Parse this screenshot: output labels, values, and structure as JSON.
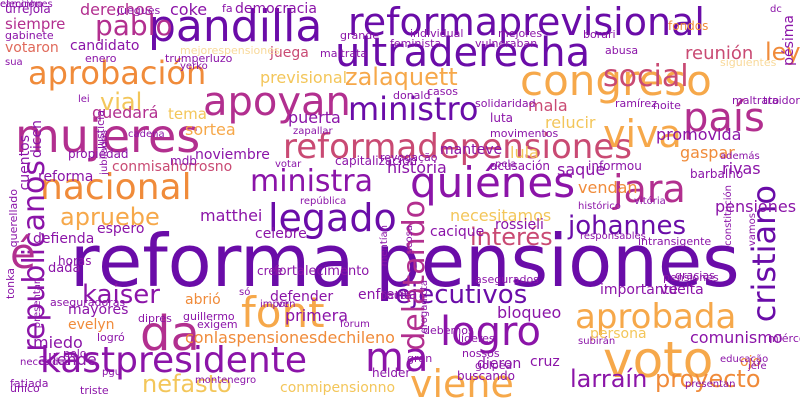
{
  "palette": {
    "deep_purple": "#6a0ca8",
    "purple": "#8b14a8",
    "magenta": "#b22f8f",
    "rose": "#c94a73",
    "coral": "#e0695a",
    "orange": "#f08b3a",
    "light_orange": "#f6a84a",
    "gold": "#f3c65a",
    "pale": "#f8d99a"
  },
  "cloud": {
    "words": [
      {
        "text": "reforma",
        "color": "deep_purple",
        "weight": "large"
      },
      {
        "text": "pensiones",
        "color": "deep_purple",
        "weight": "large"
      },
      {
        "text": "reformaprevisional",
        "color": "deep_purple",
        "weight": "large"
      },
      {
        "text": "ultraderecha",
        "color": "deep_purple",
        "weight": "large"
      },
      {
        "text": "pandilla",
        "color": "deep_purple",
        "weight": "large"
      },
      {
        "text": "congreso",
        "color": "light_orange",
        "weight": "large"
      },
      {
        "text": "aprobación",
        "color": "orange",
        "weight": "large"
      },
      {
        "text": "apoyan",
        "color": "magenta",
        "weight": "large"
      },
      {
        "text": "mujeres",
        "color": "magenta",
        "weight": "large"
      },
      {
        "text": "reformadepensiones",
        "color": "rose",
        "weight": "large"
      },
      {
        "text": "social",
        "color": "rose",
        "weight": "medium"
      },
      {
        "text": "país",
        "color": "magenta",
        "weight": "large"
      },
      {
        "text": "viva",
        "color": "light_orange",
        "weight": "large"
      },
      {
        "text": "ministro",
        "color": "deep_purple",
        "weight": "large"
      },
      {
        "text": "ministra",
        "color": "purple",
        "weight": "large"
      },
      {
        "text": "quiénes",
        "color": "purple",
        "weight": "large"
      },
      {
        "text": "jara",
        "color": "magenta",
        "weight": "large"
      },
      {
        "text": "nacional",
        "color": "orange",
        "weight": "large"
      },
      {
        "text": "legado",
        "color": "deep_purple",
        "weight": "large"
      },
      {
        "text": "republicanos",
        "color": "purple",
        "weight": "large"
      },
      {
        "text": "font",
        "color": "light_orange",
        "weight": "large"
      },
      {
        "text": "logro",
        "color": "purple",
        "weight": "large"
      },
      {
        "text": "cristiano",
        "color": "deep_purple",
        "weight": "large"
      },
      {
        "text": "voto",
        "color": "light_orange",
        "weight": "large"
      },
      {
        "text": "da",
        "color": "magenta",
        "weight": "large"
      },
      {
        "text": "aprobada",
        "color": "light_orange",
        "weight": "large"
      },
      {
        "text": "kastpresidente",
        "color": "purple",
        "weight": "large"
      },
      {
        "text": "ma",
        "color": "purple",
        "weight": "large"
      },
      {
        "text": "viene",
        "color": "light_orange",
        "weight": "large"
      },
      {
        "text": "larraín",
        "color": "purple",
        "weight": "medium"
      },
      {
        "text": "proyecto",
        "color": "orange",
        "weight": "medium"
      },
      {
        "text": "nefasto",
        "color": "gold",
        "weight": "medium"
      },
      {
        "text": "kaiser",
        "color": "purple",
        "weight": "medium"
      },
      {
        "text": "ejecutivos",
        "color": "deep_purple",
        "weight": "medium"
      },
      {
        "text": "delatando",
        "color": "magenta",
        "weight": "medium"
      },
      {
        "text": "interés",
        "color": "rose",
        "weight": "medium"
      },
      {
        "text": "johannes",
        "color": "deep_purple",
        "weight": "medium"
      },
      {
        "text": "apruebe",
        "color": "light_orange",
        "weight": "medium"
      },
      {
        "text": "pablo",
        "color": "magenta",
        "weight": "medium"
      },
      {
        "text": "zalaquett",
        "color": "light_orange",
        "weight": "medium"
      },
      {
        "text": "vial",
        "color": "gold",
        "weight": "medium"
      },
      {
        "text": "ley",
        "color": "orange",
        "weight": "medium"
      },
      {
        "text": "é",
        "color": "magenta",
        "weight": "large"
      },
      {
        "text": "derechos",
        "color": "magenta",
        "weight": "small"
      },
      {
        "text": "coke",
        "color": "purple",
        "weight": "small"
      },
      {
        "text": "siempre",
        "color": "magenta",
        "weight": "small"
      },
      {
        "text": "candidato",
        "color": "purple",
        "weight": "small"
      },
      {
        "text": "votaron",
        "color": "coral",
        "weight": "small"
      },
      {
        "text": "democracia",
        "color": "purple",
        "weight": "small"
      },
      {
        "text": "reunión",
        "color": "rose",
        "weight": "small"
      },
      {
        "text": "pésima",
        "color": "purple",
        "weight": "small"
      },
      {
        "text": "juega",
        "color": "rose",
        "weight": "small"
      },
      {
        "text": "previsional",
        "color": "gold",
        "weight": "small"
      },
      {
        "text": "puerta",
        "color": "purple",
        "weight": "small"
      },
      {
        "text": "quedará",
        "color": "magenta",
        "weight": "small"
      },
      {
        "text": "tema",
        "color": "gold",
        "weight": "small"
      },
      {
        "text": "sortea",
        "color": "light_orange",
        "weight": "small"
      },
      {
        "text": "mala",
        "color": "rose",
        "weight": "small"
      },
      {
        "text": "relucir",
        "color": "gold",
        "weight": "small"
      },
      {
        "text": "promovida",
        "color": "purple",
        "weight": "small"
      },
      {
        "text": "gaspar",
        "color": "orange",
        "weight": "small"
      },
      {
        "text": "historia",
        "color": "purple",
        "weight": "small"
      },
      {
        "text": "lula",
        "color": "gold",
        "weight": "small"
      },
      {
        "text": "saque",
        "color": "purple",
        "weight": "small"
      },
      {
        "text": "vendan",
        "color": "orange",
        "weight": "small"
      },
      {
        "text": "rivas",
        "color": "purple",
        "weight": "small"
      },
      {
        "text": "pensiones",
        "color": "purple",
        "weight": "small"
      },
      {
        "text": "noviembre",
        "color": "purple",
        "weight": "small"
      },
      {
        "text": "manteve",
        "color": "purple",
        "weight": "small"
      },
      {
        "text": "conmisahorrosno",
        "color": "rose",
        "weight": "small"
      },
      {
        "text": "matthei",
        "color": "purple",
        "weight": "small"
      },
      {
        "text": "defienda",
        "color": "purple",
        "weight": "small"
      },
      {
        "text": "espero",
        "color": "purple",
        "weight": "small"
      },
      {
        "text": "celebre",
        "color": "purple",
        "weight": "small"
      },
      {
        "text": "necesitamos",
        "color": "gold",
        "weight": "small"
      },
      {
        "text": "rossieli",
        "color": "purple",
        "weight": "small"
      },
      {
        "text": "cacique",
        "color": "purple",
        "weight": "small"
      },
      {
        "text": "horas",
        "color": "purple",
        "weight": "small"
      },
      {
        "text": "dada",
        "color": "purple",
        "weight": "small"
      },
      {
        "text": "fortalecimento",
        "color": "purple",
        "weight": "small"
      },
      {
        "text": "cree",
        "color": "purple",
        "weight": "small"
      },
      {
        "text": "defender",
        "color": "purple",
        "weight": "small"
      },
      {
        "text": "enfrenta",
        "color": "purple",
        "weight": "small"
      },
      {
        "text": "importante",
        "color": "purple",
        "weight": "small"
      },
      {
        "text": "vuelta",
        "color": "purple",
        "weight": "small"
      },
      {
        "text": "abrió",
        "color": "orange",
        "weight": "small"
      },
      {
        "text": "mayores",
        "color": "purple",
        "weight": "small"
      },
      {
        "text": "evelyn",
        "color": "orange",
        "weight": "small"
      },
      {
        "text": "miedo",
        "color": "purple",
        "weight": "small"
      },
      {
        "text": "conlaspensionesdechileno",
        "color": "orange",
        "weight": "small"
      },
      {
        "text": "primera",
        "color": "purple",
        "weight": "small"
      },
      {
        "text": "bloqueo",
        "color": "purple",
        "weight": "small"
      },
      {
        "text": "persona",
        "color": "gold",
        "weight": "small"
      },
      {
        "text": "comunismo",
        "color": "purple",
        "weight": "small"
      },
      {
        "text": "allende",
        "color": "purple",
        "weight": "small"
      },
      {
        "text": "dieron",
        "color": "purple",
        "weight": "small"
      },
      {
        "text": "cruz",
        "color": "purple",
        "weight": "small"
      },
      {
        "text": "ojo",
        "color": "orange",
        "weight": "small"
      },
      {
        "text": "conmipensionno",
        "color": "gold",
        "weight": "small"
      },
      {
        "text": "helder",
        "color": "purple",
        "weight": "small"
      },
      {
        "text": "buscando",
        "color": "purple",
        "weight": "small"
      },
      {
        "text": "cuentos",
        "color": "purple",
        "weight": "small"
      },
      {
        "text": "dicen",
        "color": "purple",
        "weight": "small"
      },
      {
        "text": "propiedad",
        "color": "purple",
        "weight": "small"
      },
      {
        "text": "reforma",
        "color": "purple",
        "weight": "small"
      },
      {
        "text": "mdb",
        "color": "purple",
        "weight": "small"
      },
      {
        "text": "capitalización",
        "color": "purple",
        "weight": "small"
      },
      {
        "text": "acusación",
        "color": "purple",
        "weight": "small"
      },
      {
        "text": "informou",
        "color": "purple",
        "weight": "small"
      },
      {
        "text": "barbalho",
        "color": "purple",
        "weight": "small"
      },
      {
        "text": "urrejola",
        "color": "purple",
        "weight": "small"
      },
      {
        "text": "gabinete",
        "color": "purple",
        "weight": "small"
      },
      {
        "text": "juegues",
        "color": "purple",
        "weight": "small"
      },
      {
        "text": "individual",
        "color": "purple",
        "weight": "small"
      },
      {
        "text": "mejores",
        "color": "purple",
        "weight": "small"
      },
      {
        "text": "borari",
        "color": "purple",
        "weight": "small"
      },
      {
        "text": "vulneraban",
        "color": "purple",
        "weight": "small"
      },
      {
        "text": "feminista",
        "color": "purple",
        "weight": "small"
      },
      {
        "text": "grande",
        "color": "purple",
        "weight": "small"
      },
      {
        "text": "enero",
        "color": "purple",
        "weight": "small"
      },
      {
        "text": "trumperluzo",
        "color": "purple",
        "weight": "small"
      },
      {
        "text": "mejorespensiones",
        "color": "pale",
        "weight": "small"
      },
      {
        "text": "maltrata",
        "color": "purple",
        "weight": "small"
      },
      {
        "text": "abusa",
        "color": "purple",
        "weight": "small"
      },
      {
        "text": "fondos",
        "color": "orange",
        "weight": "small"
      },
      {
        "text": "traidora",
        "color": "purple",
        "weight": "small"
      },
      {
        "text": "siguientes",
        "color": "pale",
        "weight": "small"
      },
      {
        "text": "maltrato",
        "color": "purple",
        "weight": "small"
      },
      {
        "text": "ramírez",
        "color": "purple",
        "weight": "small"
      },
      {
        "text": "noite",
        "color": "purple",
        "weight": "small"
      },
      {
        "text": "solidaridad",
        "color": "purple",
        "weight": "small"
      },
      {
        "text": "movimentos",
        "color": "purple",
        "weight": "small"
      },
      {
        "text": "zapallar",
        "color": "purple",
        "weight": "small"
      },
      {
        "text": "revogação",
        "color": "purple",
        "weight": "small"
      },
      {
        "text": "votar",
        "color": "purple",
        "weight": "small"
      },
      {
        "text": "pela",
        "color": "purple",
        "weight": "small"
      },
      {
        "text": "además",
        "color": "purple",
        "weight": "small"
      },
      {
        "text": "cadena",
        "color": "purple",
        "weight": "small"
      },
      {
        "text": "justicia",
        "color": "purple",
        "weight": "small"
      },
      {
        "text": "jubilados",
        "color": "purple",
        "weight": "small"
      },
      {
        "text": "querellado",
        "color": "purple",
        "weight": "small"
      },
      {
        "text": "tonka",
        "color": "purple",
        "weight": "small"
      },
      {
        "text": "histórico",
        "color": "purple",
        "weight": "small"
      },
      {
        "text": "intransigente",
        "color": "purple",
        "weight": "small"
      },
      {
        "text": "pensiones",
        "color": "purple",
        "weight": "small"
      },
      {
        "text": "gracias",
        "color": "purple",
        "weight": "small"
      },
      {
        "text": "asegurados",
        "color": "purple",
        "weight": "small"
      },
      {
        "text": "aseguradoras",
        "color": "purple",
        "weight": "small"
      },
      {
        "text": "dipres",
        "color": "purple",
        "weight": "small"
      },
      {
        "text": "guillermo",
        "color": "purple",
        "weight": "small"
      },
      {
        "text": "exigem",
        "color": "purple",
        "weight": "small"
      },
      {
        "text": "logró",
        "color": "purple",
        "weight": "small"
      },
      {
        "text": "forum",
        "color": "purple",
        "weight": "small"
      },
      {
        "text": "debemos",
        "color": "purple",
        "weight": "small"
      },
      {
        "text": "líderes",
        "color": "purple",
        "weight": "small"
      },
      {
        "text": "miércoles",
        "color": "purple",
        "weight": "small"
      },
      {
        "text": "educação",
        "color": "purple",
        "weight": "small"
      },
      {
        "text": "jefe",
        "color": "purple",
        "weight": "small"
      },
      {
        "text": "subirán",
        "color": "purple",
        "weight": "small"
      },
      {
        "text": "gran",
        "color": "purple",
        "weight": "small"
      },
      {
        "text": "nossos",
        "color": "purple",
        "weight": "small"
      },
      {
        "text": "golpea",
        "color": "purple",
        "weight": "small"
      },
      {
        "text": "único",
        "color": "purple",
        "weight": "small"
      },
      {
        "text": "fatiada",
        "color": "purple",
        "weight": "small"
      },
      {
        "text": "necesidad",
        "color": "purple",
        "weight": "small"
      },
      {
        "text": "pelo",
        "color": "purple",
        "weight": "small"
      },
      {
        "text": "pgu",
        "color": "purple",
        "weight": "small"
      },
      {
        "text": "triste",
        "color": "purple",
        "weight": "small"
      },
      {
        "text": "montenegro",
        "color": "purple",
        "weight": "small"
      },
      {
        "text": "pauta",
        "color": "purple",
        "weight": "small"
      },
      {
        "text": "donald",
        "color": "purple",
        "weight": "small"
      },
      {
        "text": "casos",
        "color": "purple",
        "weight": "small"
      },
      {
        "text": "sua",
        "color": "purple",
        "weight": "small"
      },
      {
        "text": "yerko",
        "color": "purple",
        "weight": "small"
      },
      {
        "text": "lei",
        "color": "purple",
        "weight": "small"
      },
      {
        "text": "luta",
        "color": "purple",
        "weight": "small"
      },
      {
        "text": "fa",
        "color": "purple",
        "weight": "small"
      },
      {
        "text": "dc",
        "color": "purple",
        "weight": "small"
      },
      {
        "text": "só",
        "color": "purple",
        "weight": "small"
      },
      {
        "text": "ven",
        "color": "purple",
        "weight": "small"
      },
      {
        "text": "impor",
        "color": "purple",
        "weight": "small"
      },
      {
        "text": "república",
        "color": "purple",
        "weight": "small"
      },
      {
        "text": "drogadicta",
        "color": "purple",
        "weight": "small"
      },
      {
        "text": "constitución",
        "color": "purple",
        "weight": "small"
      },
      {
        "text": "vitória",
        "color": "purple",
        "weight": "small"
      },
      {
        "text": "vamos",
        "color": "purple",
        "weight": "small"
      },
      {
        "text": "mentían",
        "color": "purple",
        "weight": "small"
      },
      {
        "text": "acosa",
        "color": "purple",
        "weight": "small"
      },
      {
        "text": "responsables",
        "color": "purple",
        "weight": "small"
      },
      {
        "text": "presentan",
        "color": "purple",
        "weight": "small"
      },
      {
        "text": "presentar",
        "color": "purple",
        "weight": "small"
      },
      {
        "text": "elecciones",
        "color": "purple",
        "weight": "small"
      },
      {
        "text": "caminho",
        "color": "purple",
        "weight": "small"
      }
    ]
  }
}
